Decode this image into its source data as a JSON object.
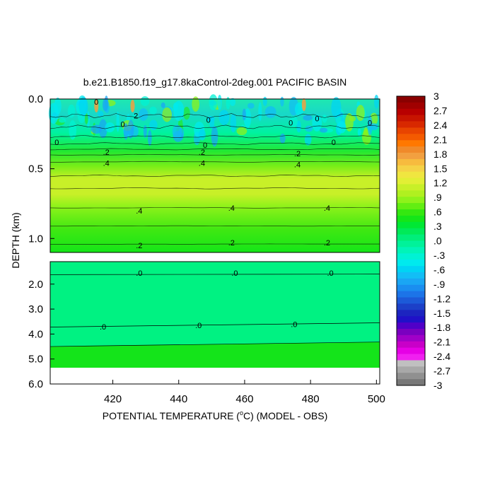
{
  "chart_data": {
    "type": "heatmap",
    "title": "b.e21.B1850.f19_g17.8kaControl-2deg.001 PACIFIC BASIN",
    "xlabel": {
      "prefix": "POTENTIAL TEMPERATURE (",
      "unit_sup": "o",
      "suffix": "C) (MODEL - OBS)"
    },
    "ylabel": "DEPTH (km)",
    "xlim": [
      401,
      501
    ],
    "x_ticks": [
      420,
      440,
      460,
      480,
      500
    ],
    "upper_panel": {
      "ylim": [
        0.0,
        1.1
      ],
      "y_ticks": [
        "0.0",
        "0.5",
        "1.0"
      ],
      "y_tick_values": [
        0.0,
        0.5,
        1.0
      ]
    },
    "lower_panel": {
      "ylim": [
        1.1,
        6.0
      ],
      "y_ticks": [
        "2.0",
        "3.0",
        "4.0",
        "5.0",
        "6.0"
      ],
      "y_tick_values": [
        2.0,
        3.0,
        4.0,
        5.0,
        6.0
      ]
    },
    "colorbar": {
      "labels": [
        "3",
        "2.7",
        "2.4",
        "2.1",
        "1.8",
        "1.5",
        "1.2",
        ".9",
        ".6",
        ".3",
        ".0",
        "-.3",
        "-.6",
        "-.9",
        "-1.2",
        "-1.5",
        "-1.8",
        "-2.1",
        "-2.4",
        "-2.7",
        "-3"
      ],
      "colors": [
        "#8a0000",
        "#a00000",
        "#b80000",
        "#c81400",
        "#d82800",
        "#e84400",
        "#f45a00",
        "#ff7800",
        "#f08a2a",
        "#f2a040",
        "#f7bb3e",
        "#f5d246",
        "#f0e640",
        "#e2ef35",
        "#c8f028",
        "#b0f020",
        "#8ef21a",
        "#62ee12",
        "#34e810",
        "#14e618",
        "#00e834",
        "#00ea58",
        "#00ee7a",
        "#00f29a",
        "#00f4b8",
        "#00f2d4",
        "#00eaee",
        "#00d4f4",
        "#12bef6",
        "#1aa6f4",
        "#1a8ef0",
        "#1c74e8",
        "#1c5ad8",
        "#1c40c8",
        "#1c24c0",
        "#2010c8",
        "#5000c8",
        "#7a00c0",
        "#a000c8",
        "#c800c8",
        "#e600e6",
        "#f020f0",
        "#c0c0c0",
        "#a8a8a8",
        "#909090",
        "#787878"
      ]
    },
    "contour_labels": {
      "upper": [
        {
          "text": "0",
          "x": 415,
          "y": 0.02
        },
        {
          "text": "2",
          "x": 427,
          "y": 0.12
        },
        {
          "text": "0",
          "x": 423,
          "y": 0.18
        },
        {
          "text": "0",
          "x": 449,
          "y": 0.15
        },
        {
          "text": "0",
          "x": 474,
          "y": 0.17
        },
        {
          "text": "0",
          "x": 482,
          "y": 0.14
        },
        {
          "text": "0",
          "x": 498,
          "y": 0.17
        },
        {
          "text": "0",
          "x": 403,
          "y": 0.31
        },
        {
          "text": "0",
          "x": 448,
          "y": 0.33
        },
        {
          "text": "0",
          "x": 487,
          "y": 0.31
        },
        {
          "text": ".2",
          "x": 418,
          "y": 0.38
        },
        {
          "text": ".2",
          "x": 447,
          "y": 0.38
        },
        {
          "text": ".2",
          "x": 476,
          "y": 0.39
        },
        {
          "text": ".4",
          "x": 418,
          "y": 0.46
        },
        {
          "text": ".4",
          "x": 447,
          "y": 0.46
        },
        {
          "text": ".4",
          "x": 476,
          "y": 0.47
        },
        {
          "text": ".4",
          "x": 428,
          "y": 0.8
        },
        {
          "text": ".4",
          "x": 456,
          "y": 0.78
        },
        {
          "text": ".4",
          "x": 485,
          "y": 0.78
        },
        {
          "text": ".2",
          "x": 428,
          "y": 1.05
        },
        {
          "text": ".2",
          "x": 456,
          "y": 1.03
        },
        {
          "text": ".2",
          "x": 485,
          "y": 1.03
        }
      ],
      "lower": [
        {
          "text": ".0",
          "x": 428,
          "y": 1.55
        },
        {
          "text": ".0",
          "x": 457,
          "y": 1.55
        },
        {
          "text": ".0",
          "x": 486,
          "y": 1.55
        },
        {
          "text": ".0",
          "x": 417,
          "y": 3.7
        },
        {
          "text": ".0",
          "x": 446,
          "y": 3.65
        },
        {
          "text": ".0",
          "x": 475,
          "y": 3.6
        }
      ]
    }
  }
}
